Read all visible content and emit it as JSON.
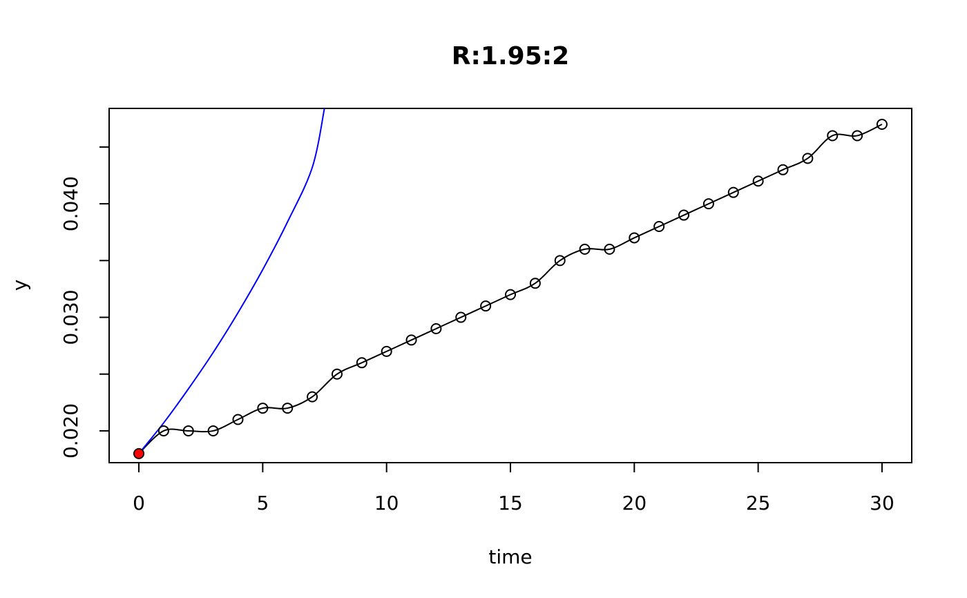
{
  "chart_data": {
    "type": "line",
    "title": "R:1.95:2",
    "xlabel": "time",
    "ylabel": "y",
    "xlim": [
      -1.2,
      31.2
    ],
    "ylim": [
      0.0172,
      0.0484
    ],
    "x_ticks": [
      0,
      5,
      10,
      15,
      20,
      25,
      30
    ],
    "x_tick_labels": [
      "0",
      "5",
      "10",
      "15",
      "20",
      "25",
      "30"
    ],
    "y_ticks": [
      0.02,
      0.025,
      0.03,
      0.035,
      0.04,
      0.045
    ],
    "y_tick_labels": [
      "0.020",
      "",
      "0.030",
      "",
      "0.040",
      ""
    ],
    "grid": false,
    "series": [
      {
        "kind": "observed",
        "color": "#000000",
        "marker": "open-circle",
        "x": [
          0,
          1,
          2,
          3,
          4,
          5,
          6,
          7,
          8,
          9,
          10,
          11,
          12,
          13,
          14,
          15,
          16,
          17,
          18,
          19,
          20,
          21,
          22,
          23,
          24,
          25,
          26,
          27,
          28,
          29,
          30
        ],
        "y": [
          0.018,
          0.02,
          0.02,
          0.02,
          0.021,
          0.022,
          0.022,
          0.023,
          0.025,
          0.026,
          0.027,
          0.028,
          0.029,
          0.03,
          0.031,
          0.032,
          0.033,
          0.035,
          0.036,
          0.036,
          0.037,
          0.038,
          0.039,
          0.04,
          0.041,
          0.042,
          0.043,
          0.044,
          0.046,
          0.046,
          0.047
        ]
      },
      {
        "kind": "model",
        "color": "#0000ff",
        "x": [
          0,
          1,
          2,
          3,
          4,
          5,
          6,
          7,
          7.5
        ],
        "y": [
          0.018,
          0.0207,
          0.0237,
          0.0269,
          0.0304,
          0.0342,
          0.0384,
          0.0432,
          0.0485
        ]
      }
    ],
    "initial_point": {
      "x": 0,
      "y": 0.018,
      "color": "#ff0000"
    }
  }
}
